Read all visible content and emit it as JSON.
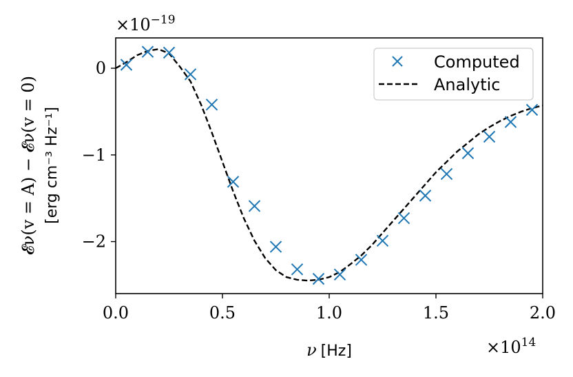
{
  "chart_data": {
    "type": "line",
    "x_multiplier_label": "×10",
    "x_multiplier_exp": "14",
    "y_multiplier_label": "×10",
    "y_multiplier_exp": "−19",
    "xlabel_main": "ν",
    "xlabel_unit": "[Hz]",
    "ylabel_line1": "𝓔ν(v = A) − 𝓔ν(v = 0)",
    "ylabel_line2": "[erg cm⁻³ Hz⁻¹]",
    "xlim": [
      0.0,
      2.0
    ],
    "ylim": [
      -2.6,
      0.35
    ],
    "xticks": [
      0.0,
      0.5,
      1.0,
      1.5,
      2.0
    ],
    "xtick_labels": [
      "0.0",
      "0.5",
      "1.0",
      "1.5",
      "2.0"
    ],
    "yticks": [
      0,
      -1,
      -2
    ],
    "ytick_labels": [
      "0",
      "−1",
      "−2"
    ],
    "legend_position": "top-right",
    "colors": {
      "computed": "#1f77b4",
      "analytic": "#000000"
    },
    "series": [
      {
        "name": "Computed",
        "marker": "x",
        "x": [
          0.05,
          0.15,
          0.25,
          0.35,
          0.45,
          0.55,
          0.65,
          0.75,
          0.85,
          0.95,
          1.05,
          1.15,
          1.25,
          1.35,
          1.45,
          1.55,
          1.65,
          1.75,
          1.85,
          1.95
        ],
        "y": [
          0.04,
          0.19,
          0.18,
          -0.07,
          -0.42,
          -1.31,
          -1.59,
          -2.06,
          -2.32,
          -2.43,
          -2.38,
          -2.21,
          -1.99,
          -1.73,
          -1.47,
          -1.22,
          -0.98,
          -0.79,
          -0.62,
          -0.48
        ]
      },
      {
        "name": "Analytic",
        "style": "dashed",
        "x": [
          0.0,
          0.05,
          0.1,
          0.15,
          0.2,
          0.25,
          0.3,
          0.35,
          0.4,
          0.45,
          0.5,
          0.55,
          0.6,
          0.65,
          0.7,
          0.75,
          0.8,
          0.85,
          0.9,
          0.95,
          1.0,
          1.05,
          1.1,
          1.15,
          1.2,
          1.25,
          1.3,
          1.35,
          1.4,
          1.45,
          1.5,
          1.55,
          1.6,
          1.65,
          1.7,
          1.75,
          1.8,
          1.85,
          1.9,
          1.95,
          2.0
        ],
        "y": [
          0.0,
          0.07,
          0.15,
          0.2,
          0.22,
          0.17,
          0.02,
          -0.15,
          -0.42,
          -0.74,
          -1.08,
          -1.42,
          -1.73,
          -1.99,
          -2.19,
          -2.33,
          -2.41,
          -2.44,
          -2.45,
          -2.44,
          -2.41,
          -2.35,
          -2.26,
          -2.16,
          -2.04,
          -1.9,
          -1.76,
          -1.62,
          -1.48,
          -1.34,
          -1.2,
          -1.08,
          -0.96,
          -0.86,
          -0.76,
          -0.68,
          -0.61,
          -0.55,
          -0.5,
          -0.46,
          -0.43
        ]
      }
    ]
  }
}
